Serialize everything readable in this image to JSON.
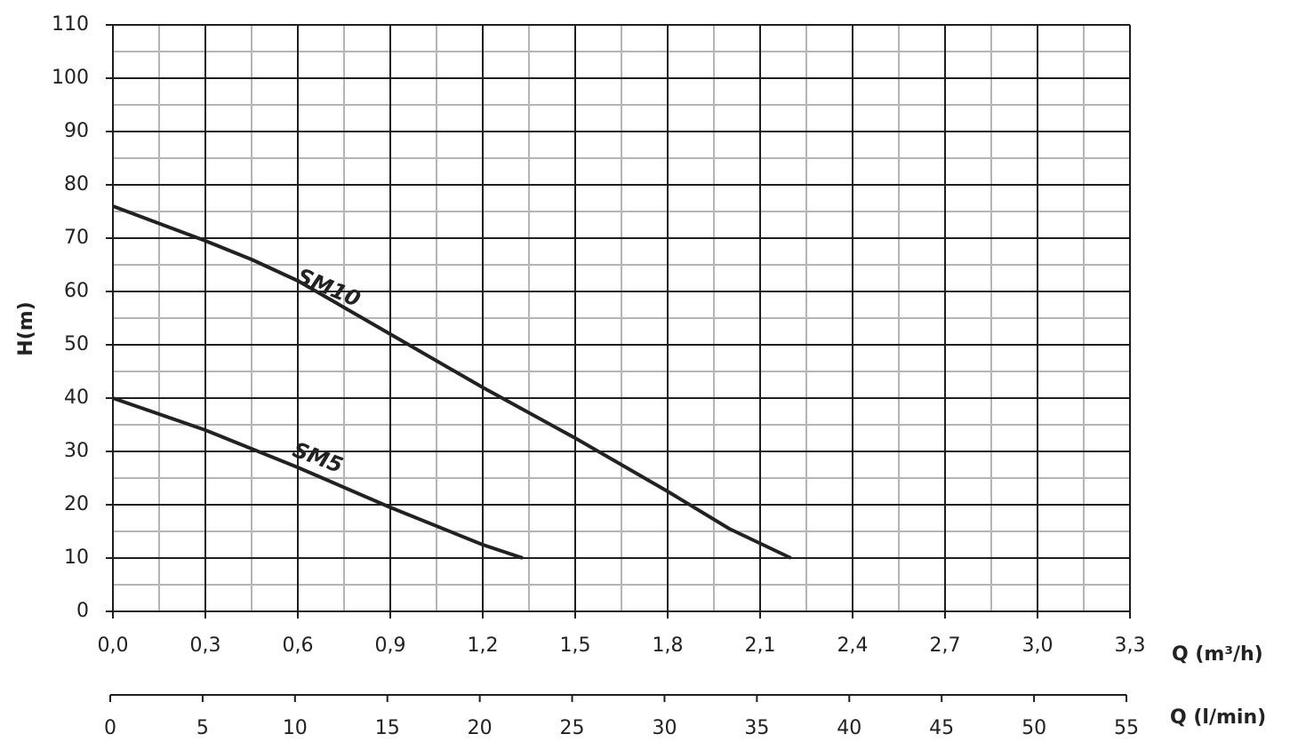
{
  "chart_data": {
    "type": "line",
    "ylabel": "H(m)",
    "xlabel": "Q (m³/h)",
    "x2label": "Q (l/min)",
    "xlim": [
      0,
      3.3
    ],
    "ylim": [
      0,
      110
    ],
    "x2lim": [
      0,
      55
    ],
    "xticks": [
      {
        "value": 0,
        "label": "0,0"
      },
      {
        "value": 0.3,
        "label": "0,3"
      },
      {
        "value": 0.6,
        "label": "0,6"
      },
      {
        "value": 0.9,
        "label": "0,9"
      },
      {
        "value": 1.2,
        "label": "1,2"
      },
      {
        "value": 1.5,
        "label": "1,5"
      },
      {
        "value": 1.8,
        "label": "1,8"
      },
      {
        "value": 2.1,
        "label": "2,1"
      },
      {
        "value": 2.4,
        "label": "2,4"
      },
      {
        "value": 2.7,
        "label": "2,7"
      },
      {
        "value": 3.0,
        "label": "3,0"
      },
      {
        "value": 3.3,
        "label": "3,3"
      }
    ],
    "x_minor_grid": [
      0.15,
      0.45,
      0.75,
      1.05,
      1.35,
      1.65,
      1.95,
      2.25,
      2.55,
      2.85,
      3.15
    ],
    "yticks": [
      0,
      10,
      20,
      30,
      40,
      50,
      60,
      70,
      80,
      90,
      100,
      110
    ],
    "y_minor_grid": [
      5,
      15,
      25,
      35,
      45,
      55,
      65,
      75,
      85,
      95,
      105
    ],
    "x2ticks": [
      0,
      5,
      10,
      15,
      20,
      25,
      30,
      35,
      40,
      45,
      50,
      55
    ],
    "grid": true,
    "series": [
      {
        "name": "SM10",
        "color": "#222222",
        "x": [
          0,
          0.3,
          0.45,
          0.6,
          0.9,
          1.2,
          1.5,
          1.8,
          2.0,
          2.2
        ],
        "values": [
          76,
          69.5,
          66,
          62,
          52,
          42,
          32.5,
          22.5,
          15.5,
          10
        ]
      },
      {
        "name": "SM5",
        "color": "#222222",
        "x": [
          0,
          0.3,
          0.6,
          0.9,
          1.2,
          1.33
        ],
        "values": [
          40,
          34,
          27,
          19.5,
          12.5,
          10
        ]
      }
    ]
  }
}
